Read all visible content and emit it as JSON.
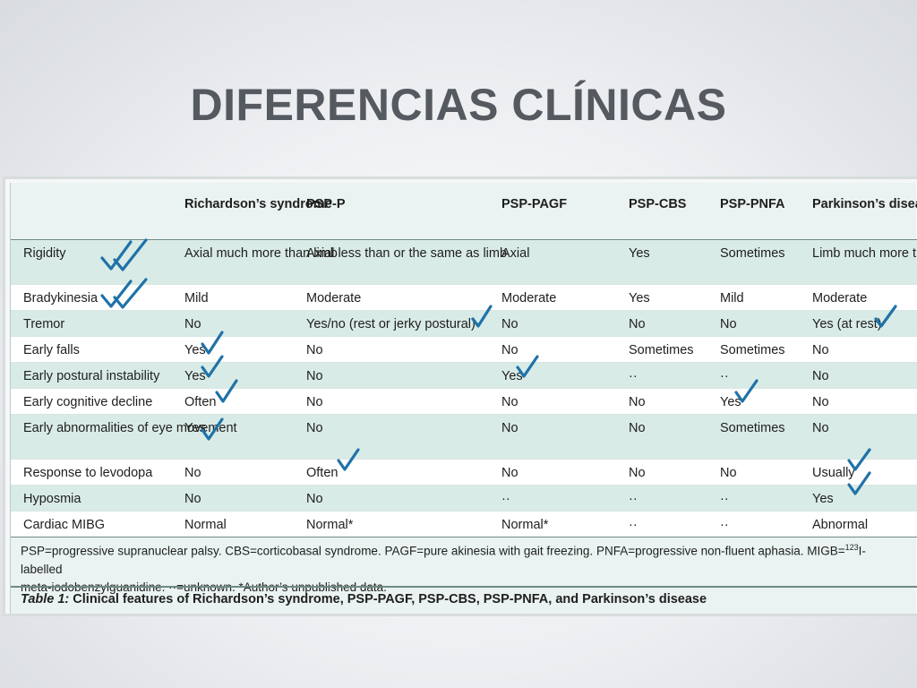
{
  "slide": {
    "title": "DIFERENCIAS CLÍNICAS"
  },
  "table": {
    "headers": [
      "",
      "Richardson’s syndrome",
      "PSP-P",
      "PSP-PAGF",
      "PSP-CBS",
      "PSP-PNFA",
      "Parkinson’s disease"
    ],
    "rows": [
      [
        "Rigidity",
        "Axial much more than limb",
        "Axial less than or the same as limb",
        "Axial",
        "Yes",
        "Sometimes",
        "Limb much more than axial"
      ],
      [
        "Bradykinesia",
        "Mild",
        "Moderate",
        "Moderate",
        "Yes",
        "Mild",
        "Moderate"
      ],
      [
        "Tremor",
        "No",
        "Yes/no (rest or jerky postural)",
        "No",
        "No",
        "No",
        "Yes (at rest)"
      ],
      [
        "Early falls",
        "Yes",
        "No",
        "No",
        "Sometimes",
        "Sometimes",
        "No"
      ],
      [
        "Early postural instability",
        "Yes",
        "No",
        "Yes",
        "··",
        "··",
        "No"
      ],
      [
        "Early cognitive decline",
        "Often",
        "No",
        "No",
        "No",
        "Yes",
        "No"
      ],
      [
        "Early abnormalities of eye movement",
        "Yes",
        "No",
        "No",
        "No",
        "Sometimes",
        "No"
      ],
      [
        "Response to levodopa",
        "No",
        "Often",
        "No",
        "No",
        "No",
        "Usually"
      ],
      [
        "Hyposmia",
        "No",
        "No",
        "··",
        "··",
        "··",
        "Yes"
      ],
      [
        "Cardiac MIBG",
        "Normal",
        "Normal*",
        "Normal*",
        "··",
        "··",
        "Abnormal"
      ]
    ],
    "footnote_line1_pre": "PSP=progressive supranuclear palsy. CBS=corticobasal syndrome. PAGF=pure akinesia with gait freezing. PNFA=progressive non-fluent aphasia. MIGB=",
    "footnote_sup": "123",
    "footnote_line1_post": "I-labelled",
    "footnote_line2": "meta-iodobenzylguanidine. ··=unknown.  *Author’s unpublished data.",
    "caption_label": "Table 1:",
    "caption_text": " Clinical features of Richardson’s syndrome, PSP-PAGF, PSP-CBS, PSP-PNFA, and Parkinson’s disease"
  },
  "annotations": {
    "mark_color": "#1f72a8",
    "mark_icon": "checkmark-icon"
  }
}
